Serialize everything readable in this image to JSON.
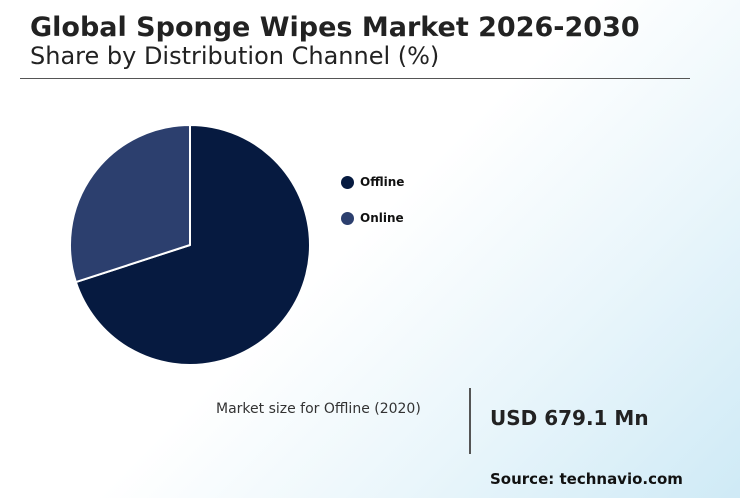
{
  "chart_data": {
    "type": "pie",
    "title": "Global Sponge Wipes Market 2026-2030",
    "subtitle": "Share by Distribution Channel (%)",
    "categories": [
      "Offline",
      "Online"
    ],
    "values": [
      70,
      30
    ],
    "colors": [
      "#061a40",
      "#2c3f6e"
    ],
    "legend_position": "right"
  },
  "kpi": {
    "label": "Market size for Offline (2020)",
    "value": "USD 679.1 Mn"
  },
  "source": "Source: technavio.com"
}
